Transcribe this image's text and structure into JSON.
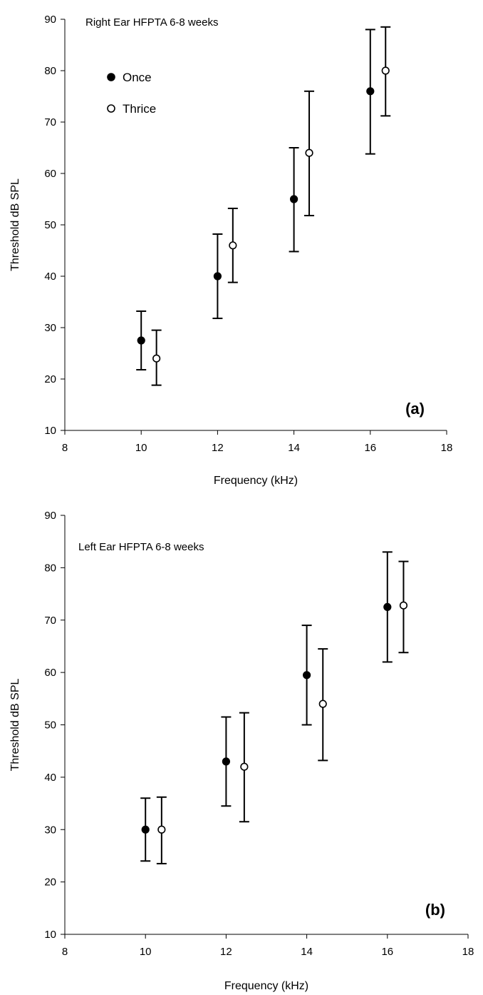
{
  "chart_data": [
    {
      "type": "scatter",
      "title": "Right Ear HFPTA 6-8 weeks",
      "panel_label": "(a)",
      "xlabel": "Frequency (kHz)",
      "ylabel": "Threshold dB SPL",
      "xlim": [
        8,
        18
      ],
      "ylim": [
        10,
        90
      ],
      "x_ticks": [
        8,
        10,
        12,
        14,
        16,
        18
      ],
      "y_ticks": [
        10,
        20,
        30,
        40,
        50,
        60,
        70,
        80,
        90
      ],
      "grid": false,
      "legend": "top-left",
      "series": [
        {
          "name": "Once",
          "marker": "filled-circle",
          "x": [
            10,
            12,
            14,
            16
          ],
          "y": [
            27.5,
            40,
            55,
            76
          ],
          "err_low": [
            21.8,
            31.8,
            44.8,
            63.8
          ],
          "err_high": [
            33.2,
            48.2,
            65,
            88
          ]
        },
        {
          "name": "Thrice",
          "marker": "open-circle",
          "x": [
            10.4,
            12.4,
            14.4,
            16.4
          ],
          "y": [
            24,
            46,
            64,
            80
          ],
          "err_low": [
            18.8,
            38.8,
            51.8,
            71.2
          ],
          "err_high": [
            29.5,
            53.2,
            76,
            88.5
          ]
        }
      ]
    },
    {
      "type": "scatter",
      "title": "Left Ear HFPTA 6-8 weeks",
      "panel_label": "(b)",
      "xlabel": "Frequency (kHz)",
      "ylabel": "Threshold dB SPL",
      "xlim": [
        8,
        18
      ],
      "ylim": [
        10,
        90
      ],
      "x_ticks": [
        8,
        10,
        12,
        14,
        16,
        18
      ],
      "y_ticks": [
        10,
        20,
        30,
        40,
        50,
        60,
        70,
        80,
        90
      ],
      "grid": false,
      "legend": "none",
      "series": [
        {
          "name": "Once",
          "marker": "filled-circle",
          "x": [
            10,
            12,
            14,
            16
          ],
          "y": [
            30,
            43,
            59.5,
            72.5
          ],
          "err_low": [
            24,
            34.5,
            50,
            62
          ],
          "err_high": [
            36,
            51.5,
            69,
            83
          ]
        },
        {
          "name": "Thrice",
          "marker": "open-circle",
          "x": [
            10.4,
            12.45,
            14.4,
            16.4
          ],
          "y": [
            30,
            42,
            54,
            72.8
          ],
          "err_low": [
            23.5,
            31.5,
            43.2,
            63.8
          ],
          "err_high": [
            36.2,
            52.3,
            64.5,
            81.2
          ]
        }
      ]
    }
  ]
}
